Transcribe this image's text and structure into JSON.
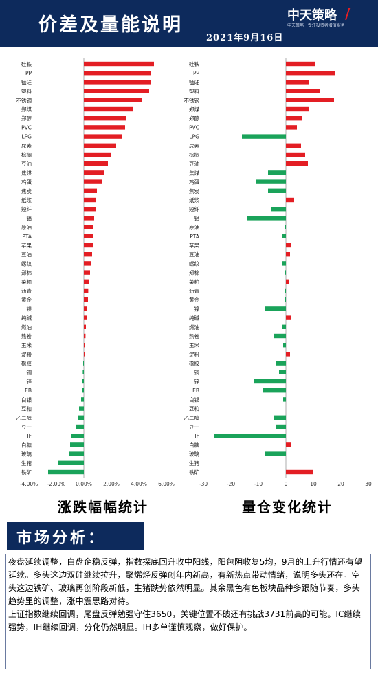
{
  "header": {
    "title": "价差及量能说明",
    "date": "2021年9月16日",
    "logo_main": "中天策略",
    "logo_tagline": "中天策略 · 专注投资者增值服务"
  },
  "colors": {
    "up": "#e31e24",
    "down": "#1aa35a",
    "navy": "#0d2a5c"
  },
  "chart_data": [
    {
      "type": "bar",
      "orientation": "horizontal",
      "title": "涨跌幅幅统计",
      "xlim": [
        -4,
        6
      ],
      "xticks": [
        "-4.00%",
        "-2.00%",
        "0.00%",
        "2.00%",
        "4.00%",
        "6.00%"
      ],
      "grid": false,
      "categories": [
        "硅铁",
        "PP",
        "锰硅",
        "塑料",
        "不锈钢",
        "郑煤",
        "郑醇",
        "PVC",
        "LPG",
        "尿素",
        "棕榈",
        "豆油",
        "焦煤",
        "鸡蛋",
        "焦炭",
        "纸浆",
        "短纤",
        "铝",
        "原油",
        "PTA",
        "苹果",
        "豆油",
        "螺纹",
        "郑棉",
        "菜粕",
        "沥青",
        "黄金",
        "镍",
        "纯碱",
        "燃油",
        "热卷",
        "玉米",
        "淀粉",
        "橡胶",
        "铜",
        "锌",
        "EB",
        "白银",
        "豆粕",
        "乙二醇",
        "豆一",
        "IF",
        "白糖",
        "玻璃",
        "生猪",
        "铁矿"
      ],
      "values": [
        5.1,
        4.9,
        4.85,
        4.75,
        4.2,
        3.55,
        3.05,
        3.0,
        2.75,
        2.35,
        1.95,
        1.75,
        1.5,
        1.3,
        0.95,
        0.88,
        0.85,
        0.75,
        0.7,
        0.68,
        0.65,
        0.6,
        0.5,
        0.45,
        0.35,
        0.32,
        0.3,
        0.25,
        0.2,
        0.15,
        0.12,
        0.08,
        0.05,
        -0.05,
        -0.08,
        -0.1,
        -0.15,
        -0.2,
        -0.35,
        -0.45,
        -0.6,
        -0.95,
        -1.0,
        -1.05,
        -1.9,
        -2.6
      ]
    },
    {
      "type": "bar",
      "orientation": "horizontal",
      "title": "量仓变化统计",
      "xlim": [
        -30,
        30
      ],
      "xticks": [
        "-30",
        "-20",
        "-10",
        "0",
        "10",
        "20",
        "30"
      ],
      "grid": false,
      "categories": [
        "硅铁",
        "PP",
        "锰硅",
        "塑料",
        "不锈钢",
        "郑煤",
        "郑醇",
        "PVC",
        "LPG",
        "尿素",
        "棕榈",
        "豆油",
        "焦煤",
        "鸡蛋",
        "焦炭",
        "纸浆",
        "短纤",
        "铝",
        "原油",
        "PTA",
        "苹果",
        "豆油",
        "螺纹",
        "郑棉",
        "菜粕",
        "沥青",
        "黄金",
        "镍",
        "纯碱",
        "燃油",
        "热卷",
        "玉米",
        "淀粉",
        "橡胶",
        "铜",
        "锌",
        "EB",
        "白银",
        "豆粕",
        "乙二醇",
        "豆一",
        "IF",
        "白糖",
        "玻璃",
        "生猪",
        "铁矿"
      ],
      "values": [
        10.5,
        18,
        8.5,
        12.5,
        17.5,
        8.5,
        6,
        4,
        -16,
        5.5,
        7,
        8,
        -6.5,
        -11,
        -6.5,
        3,
        -5.5,
        -14,
        -0.5,
        -1.5,
        2,
        1.5,
        -1.5,
        -0.5,
        1,
        -0.5,
        -0.5,
        -7.5,
        2,
        -1.5,
        -4.5,
        -1,
        1.5,
        -3.5,
        -2.5,
        -11.5,
        -8.5,
        -1,
        0,
        -4.5,
        -3.5,
        -26,
        2,
        -7.5,
        0,
        10
      ]
    }
  ],
  "captions": {
    "left": "涨跌幅幅统计",
    "right": "量仓变化统计"
  },
  "market": {
    "heading": "市场分析：",
    "paragraph1": "夜盘延续调整，白盘企稳反弹，指数探底回升收中阳线，阳包阴收复5均，9月的上升行情还有望延续。多头这边双硅继续拉升，聚烯烃反弹创年内新高，有新热点带动情绪，说明多头还在。空头这边铁矿、玻璃再创阶段新低，生猪跌势依然明显。其余黑色有色板块品种多跟随节奏，多头趋势里的调整，涨中震思路对待。",
    "paragraph2": "上证指数继续回调，尾盘反弹勉强守住3650，关键位置不破还有挑战3731前高的可能。IC继续强势，IH继续回调，分化仍然明显。IH多单谨慎观察，做好保护。"
  }
}
